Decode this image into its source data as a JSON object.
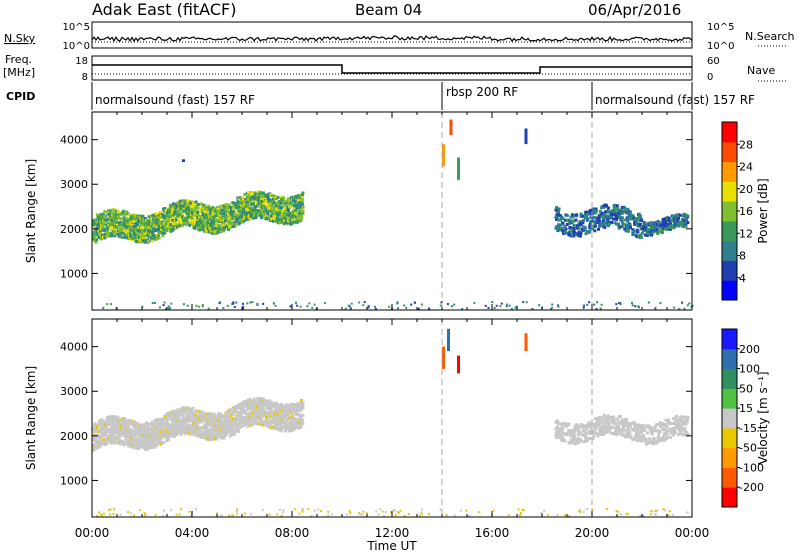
{
  "header": {
    "radar": "Adak East (fitACF)",
    "beam": "Beam 04",
    "date": "06/Apr/2016"
  },
  "strip_panels": {
    "nsky": {
      "label": "N.Sky",
      "right_label": "N.Search",
      "left_ticks": [
        "10^5",
        "10^0"
      ],
      "right_ticks": [
        "10^5",
        "10^0"
      ]
    },
    "freq": {
      "label_line1": "Freq.",
      "label_line2": "[MHz]",
      "right_label": "Nave",
      "left_ticks": [
        "18",
        "8"
      ],
      "right_ticks": [
        "60",
        "0"
      ]
    },
    "cpid": {
      "label": "CPID",
      "segments": [
        {
          "label": "normalsound (fast) 157 RF",
          "start_h": 0,
          "end_h": 14
        },
        {
          "label": "rbsp 200 RF",
          "start_h": 14,
          "end_h": 20
        },
        {
          "label": "normalsound (fast) 157 RF",
          "start_h": 20,
          "end_h": 24
        }
      ]
    }
  },
  "colors": {
    "power_scale": [
      "#0000ff",
      "#1f3fb0",
      "#2e7f8e",
      "#3a9a5a",
      "#7fc030",
      "#e8e000",
      "#ff9a00",
      "#ff4a00",
      "#ff0000"
    ],
    "velocity_scale": [
      "#1a1aff",
      "#2f6fb0",
      "#2f8f5f",
      "#50c040",
      "#c8c8c8",
      "#e8c800",
      "#ff9a00",
      "#ff5a00",
      "#ff0000"
    ]
  },
  "chart_data": [
    {
      "type": "heatmap",
      "name": "power",
      "ylabel": "Slant Range [km]",
      "ylim": [
        180,
        4620
      ],
      "xlim": [
        0,
        24
      ],
      "yticks": [
        "1000",
        "2000",
        "3000",
        "4000"
      ],
      "colorbar": {
        "title": "Power [dB]",
        "ticks": [
          "4",
          "8",
          "12",
          "16",
          "20",
          "24",
          "28"
        ],
        "range": [
          0,
          32
        ]
      },
      "bands": [
        {
          "t0": 0.0,
          "t1": 8.4,
          "center_start": 1950,
          "center_end": 2550,
          "halfwidth": 300,
          "level": [
            8,
            20
          ]
        },
        {
          "t0": 22.0,
          "t1": 23.8,
          "center_start": 2100,
          "center_end": 2050,
          "halfwidth": 150,
          "level": [
            4,
            12
          ]
        },
        {
          "t0": 18.5,
          "t1": 22.0,
          "center_start": 2200,
          "center_end": 2150,
          "halfwidth": 260,
          "level": [
            4,
            12
          ]
        }
      ],
      "features": [
        {
          "t": 14.0,
          "r0": 3400,
          "r1": 3900,
          "value": 22
        },
        {
          "t": 14.3,
          "r0": 4100,
          "r1": 4450,
          "value": 26
        },
        {
          "t": 14.6,
          "r0": 3100,
          "r1": 3600,
          "value": 14
        },
        {
          "t": 17.3,
          "r0": 3900,
          "r1": 4250,
          "value": 6
        },
        {
          "t": 3.6,
          "r0": 3500,
          "r1": 3560,
          "value": 6
        }
      ]
    },
    {
      "type": "heatmap",
      "name": "velocity",
      "ylabel": "Slant Range [km]",
      "xlabel": "Time UT",
      "ylim": [
        180,
        4620
      ],
      "xlim": [
        0,
        24
      ],
      "yticks": [
        "1000",
        "2000",
        "3000",
        "4000"
      ],
      "xticks": [
        "00:00",
        "04:00",
        "08:00",
        "12:00",
        "16:00",
        "20:00",
        "00:00"
      ],
      "colorbar": {
        "title": "Velocity [m s⁻¹]",
        "ticks": [
          "200",
          "100",
          "50",
          "15",
          "-15",
          "-50",
          "-100",
          "-200"
        ],
        "range": [
          -250,
          250
        ]
      },
      "bands": [
        {
          "t0": 0.0,
          "t1": 8.4,
          "center_start": 1950,
          "center_end": 2550,
          "halfwidth": 300,
          "level": [
            -30,
            10
          ]
        },
        {
          "t0": 18.5,
          "t1": 23.8,
          "center_start": 2150,
          "center_end": 2100,
          "halfwidth": 220,
          "level": [
            -20,
            20
          ]
        }
      ],
      "features": [
        {
          "t": 14.0,
          "r0": 3500,
          "r1": 4000,
          "value": -180
        },
        {
          "t": 14.2,
          "r0": 3900,
          "r1": 4400,
          "value": 150
        },
        {
          "t": 14.6,
          "r0": 3400,
          "r1": 3800,
          "value": -220
        },
        {
          "t": 17.3,
          "r0": 3900,
          "r1": 4300,
          "value": -150
        }
      ]
    }
  ]
}
